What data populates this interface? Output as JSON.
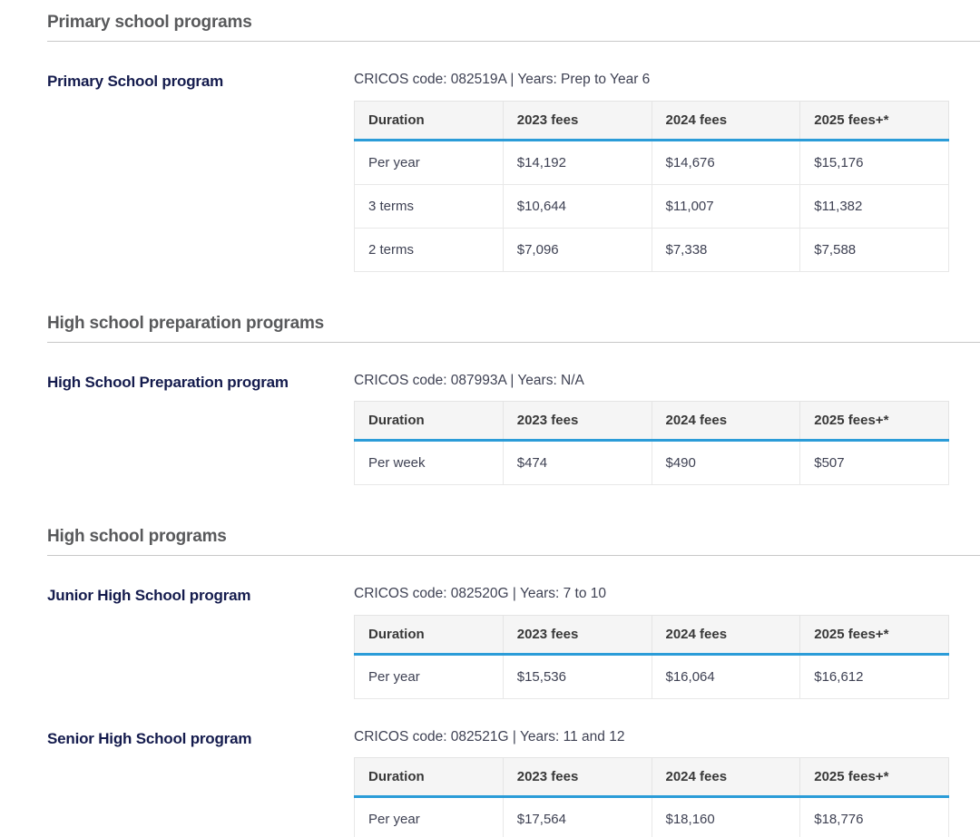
{
  "colors": {
    "brand_navy": "#141b4d",
    "heading_gray": "#58595b",
    "rule_gray": "#c8c8c8",
    "accent_blue": "#2b9cd8",
    "header_bg": "#f5f5f5",
    "body_text": "#3e4153"
  },
  "sections": [
    {
      "heading": "Primary school programs",
      "programs": [
        {
          "name": "Primary School program",
          "meta": "CRICOS code: 082519A | Years: Prep to Year 6",
          "table": {
            "headers": [
              "Duration",
              "2023 fees",
              "2024 fees",
              "2025 fees+*"
            ],
            "rows": [
              [
                "Per year",
                "$14,192",
                "$14,676",
                "$15,176"
              ],
              [
                "3 terms",
                "$10,644",
                "$11,007",
                "$11,382"
              ],
              [
                "2 terms",
                "$7,096",
                "$7,338",
                "$7,588"
              ]
            ]
          }
        }
      ]
    },
    {
      "heading": "High school preparation programs",
      "programs": [
        {
          "name": "High School Preparation program",
          "meta": "CRICOS code: 087993A | Years: N/A",
          "table": {
            "headers": [
              "Duration",
              "2023 fees",
              "2024 fees",
              "2025 fees+*"
            ],
            "rows": [
              [
                "Per week",
                "$474",
                "$490",
                "$507"
              ]
            ]
          }
        }
      ]
    },
    {
      "heading": "High school programs",
      "programs": [
        {
          "name": "Junior High School program",
          "meta": "CRICOS code: 082520G | Years: 7 to 10",
          "table": {
            "headers": [
              "Duration",
              "2023 fees",
              "2024 fees",
              "2025 fees+*"
            ],
            "rows": [
              [
                "Per year",
                "$15,536",
                "$16,064",
                "$16,612"
              ]
            ]
          }
        },
        {
          "name": "Senior High School program",
          "meta": "CRICOS code: 082521G | Years: 11 and 12",
          "table": {
            "headers": [
              "Duration",
              "2023 fees",
              "2024 fees",
              "2025 fees+*"
            ],
            "rows": [
              [
                "Per year",
                "$17,564",
                "$18,160",
                "$18,776"
              ]
            ]
          }
        }
      ]
    }
  ]
}
